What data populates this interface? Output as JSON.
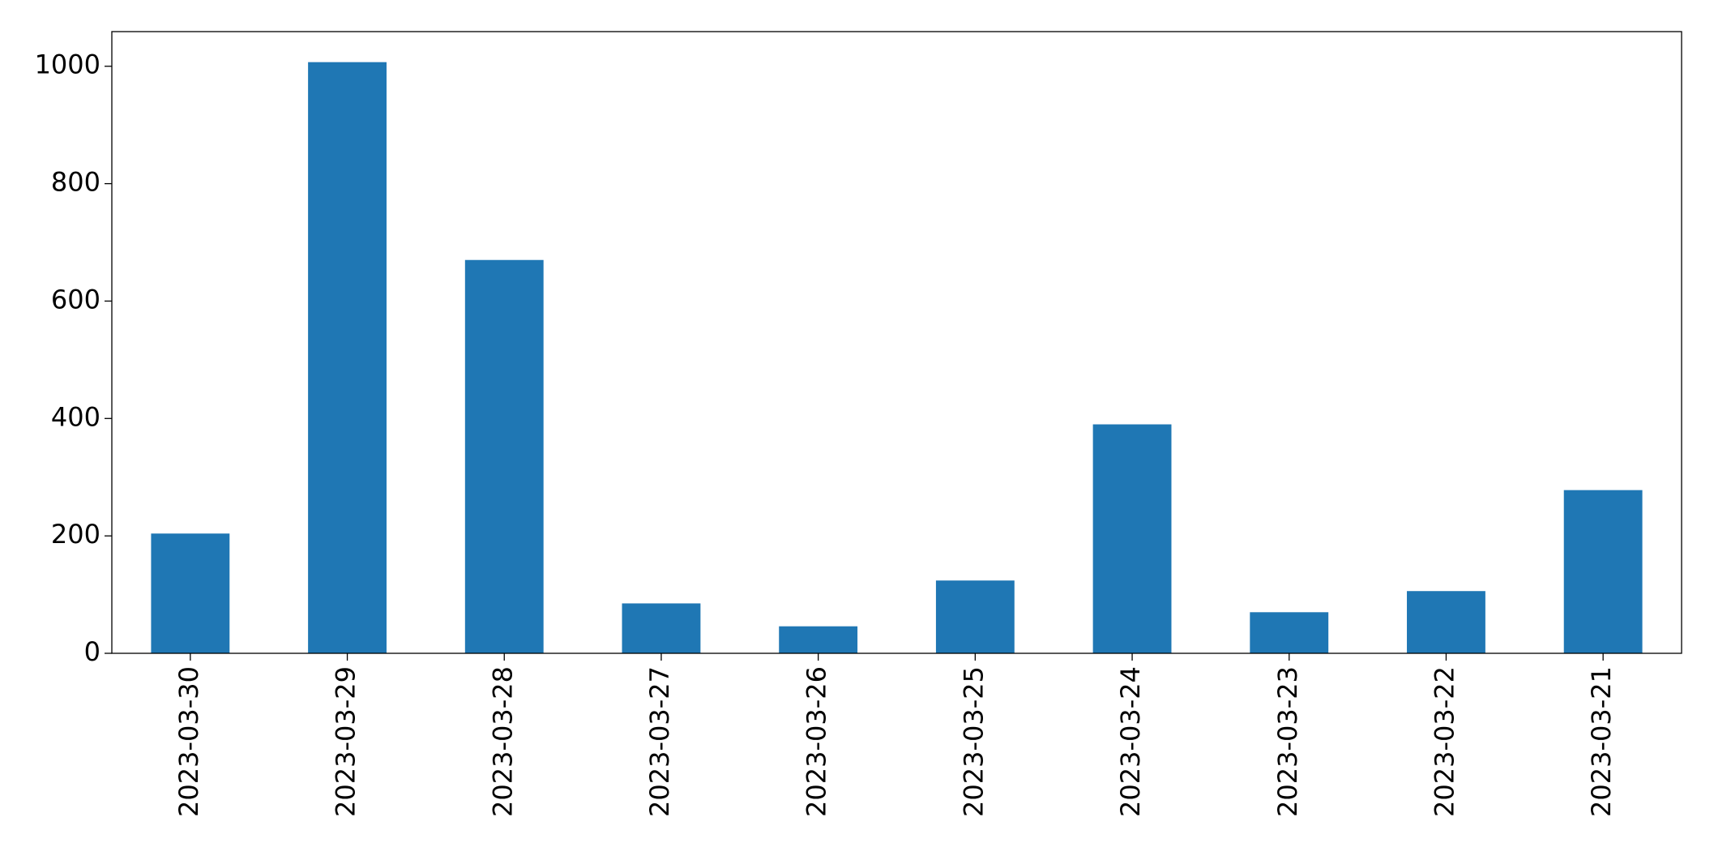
{
  "chart_data": {
    "type": "bar",
    "categories": [
      "2023-03-30",
      "2023-03-29",
      "2023-03-28",
      "2023-03-27",
      "2023-03-26",
      "2023-03-25",
      "2023-03-24",
      "2023-03-23",
      "2023-03-22",
      "2023-03-21"
    ],
    "values": [
      204,
      1007,
      670,
      85,
      46,
      124,
      390,
      70,
      106,
      278
    ],
    "color": "#1f77b4",
    "ylim": [
      0,
      1059
    ],
    "yticks": [
      0,
      200,
      400,
      600,
      800,
      1000
    ],
    "grid": false
  }
}
